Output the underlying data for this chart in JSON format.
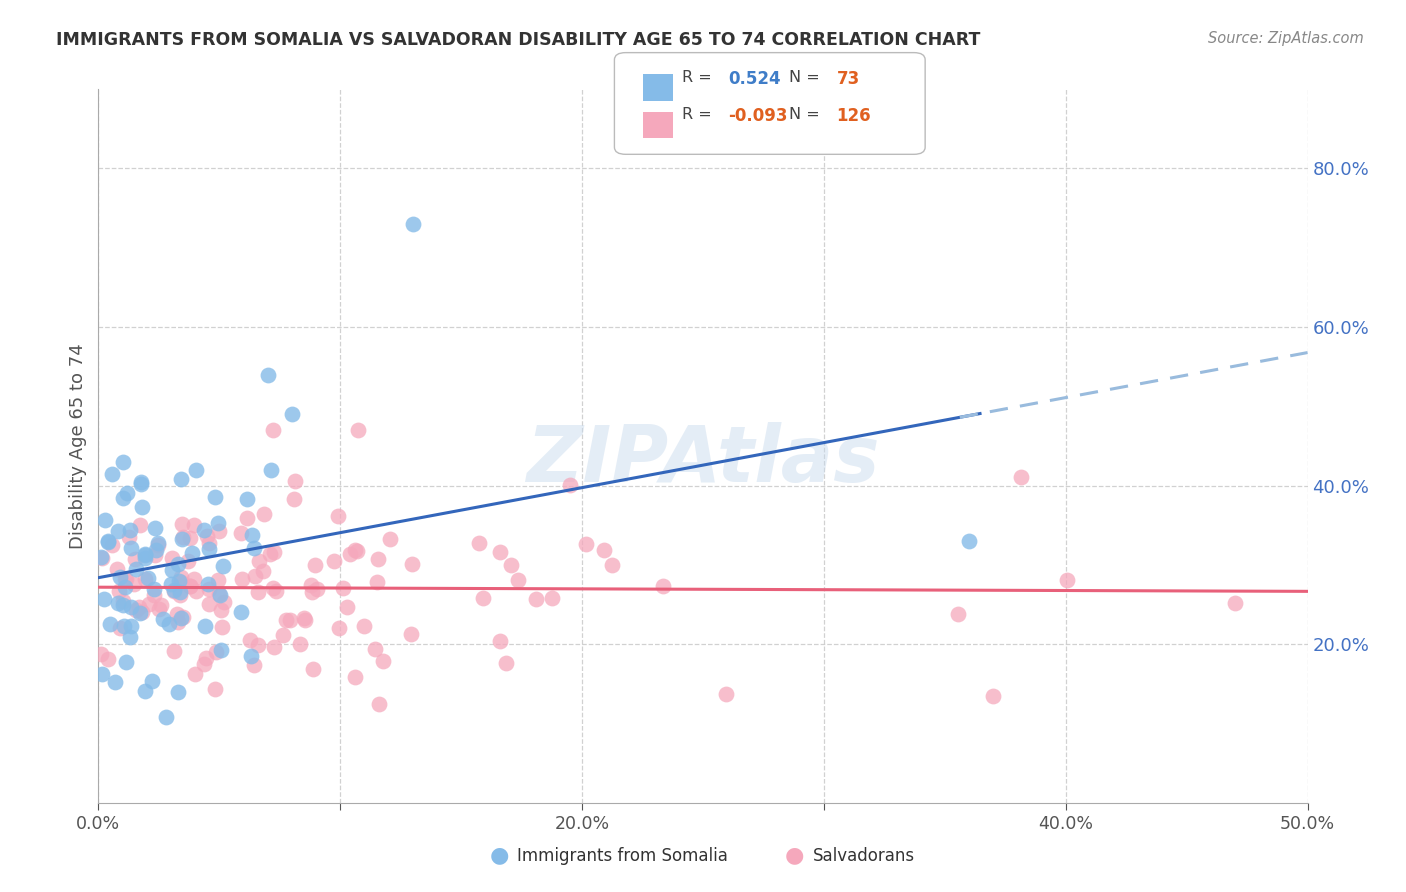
{
  "title": "IMMIGRANTS FROM SOMALIA VS SALVADORAN DISABILITY AGE 65 TO 74 CORRELATION CHART",
  "source": "Source: ZipAtlas.com",
  "ylabel": "Disability Age 65 to 74",
  "xlim": [
    0.0,
    0.5
  ],
  "ylim": [
    0.0,
    0.9
  ],
  "yticks": [
    0.2,
    0.4,
    0.6,
    0.8
  ],
  "ytick_labels": [
    "20.0%",
    "40.0%",
    "60.0%",
    "80.0%"
  ],
  "xticks": [
    0.0,
    0.1,
    0.2,
    0.3,
    0.4,
    0.5
  ],
  "xtick_labels": [
    "0.0%",
    "",
    "20.0%",
    "",
    "40.0%",
    "50.0%"
  ],
  "somalia_R": 0.524,
  "somalia_N": 73,
  "salvador_R": -0.093,
  "salvador_N": 126,
  "somalia_color": "#85BBE8",
  "salvador_color": "#F5A8BC",
  "somalia_line_color": "#3366BB",
  "salvador_line_color": "#E8607A",
  "dashed_line_color": "#99BBDD",
  "background_color": "#FFFFFF",
  "grid_color": "#CCCCCC",
  "title_color": "#333333",
  "axis_label_color": "#555555",
  "tick_color_right": "#4472C4",
  "tick_color_bottom": "#555555",
  "watermark_color": "#C5D8EC",
  "legend_border_color": "#AAAAAA"
}
